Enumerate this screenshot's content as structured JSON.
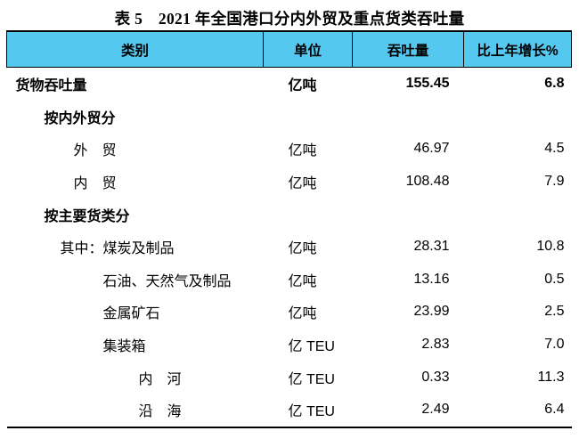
{
  "title": "表 5　2021 年全国港口分内外贸及重点货类吞吐量",
  "colors": {
    "header_bg": "#55C8F0",
    "border": "#000000",
    "text": "#000000",
    "page_bg": "#FFFFFF"
  },
  "table": {
    "columns": [
      {
        "label": "类别"
      },
      {
        "label": "单位"
      },
      {
        "label": "吞吐量"
      },
      {
        "label": "比上年增长%"
      }
    ],
    "rows": [
      {
        "category": "货物吞吐量",
        "unit": "亿吨",
        "value": "155.45",
        "growth": "6.8"
      },
      {
        "category": "按内外贸分",
        "unit": "",
        "value": "",
        "growth": ""
      },
      {
        "category": "外　贸",
        "unit": "亿吨",
        "value": "46.97",
        "growth": "4.5"
      },
      {
        "category": "内　贸",
        "unit": "亿吨",
        "value": "108.48",
        "growth": "7.9"
      },
      {
        "category": "按主要货类分",
        "unit": "",
        "value": "",
        "growth": ""
      },
      {
        "category": "其中：煤炭及制品",
        "unit": "亿吨",
        "value": "28.31",
        "growth": "10.8"
      },
      {
        "category": "石油、天然气及制品",
        "unit": "亿吨",
        "value": "13.16",
        "growth": "0.5"
      },
      {
        "category": "金属矿石",
        "unit": "亿吨",
        "value": "23.99",
        "growth": "2.5"
      },
      {
        "category": "集装箱",
        "unit": "亿 TEU",
        "value": "2.83",
        "growth": "7.0"
      },
      {
        "category": "内　河",
        "unit": "亿 TEU",
        "value": "0.33",
        "growth": "11.3"
      },
      {
        "category": "沿　海",
        "unit": "亿 TEU",
        "value": "2.49",
        "growth": "6.4"
      }
    ]
  }
}
